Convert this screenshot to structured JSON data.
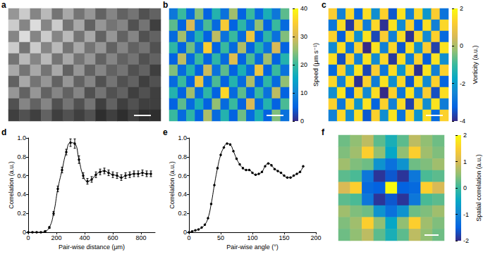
{
  "chart_data": [
    {
      "title": "a",
      "type": "heatmap",
      "color": "gray",
      "tick_labels": false,
      "cells": [
        [
          0.55,
          0.7,
          0.5,
          0.65,
          0.45,
          0.6,
          0.45,
          0.55,
          0.4,
          0.5,
          0.4,
          0.45,
          0.35,
          0.4
        ],
        [
          0.7,
          0.5,
          0.75,
          0.5,
          0.7,
          0.45,
          0.6,
          0.4,
          0.55,
          0.45,
          0.5,
          0.35,
          0.45,
          0.3
        ],
        [
          0.5,
          0.75,
          0.5,
          0.7,
          0.5,
          0.65,
          0.45,
          0.6,
          0.4,
          0.55,
          0.4,
          0.5,
          0.35,
          0.4
        ],
        [
          0.7,
          0.45,
          0.7,
          0.5,
          0.65,
          0.45,
          0.6,
          0.45,
          0.55,
          0.4,
          0.5,
          0.4,
          0.45,
          0.35
        ],
        [
          0.45,
          0.65,
          0.5,
          0.65,
          0.45,
          0.6,
          0.45,
          0.55,
          0.4,
          0.5,
          0.4,
          0.45,
          0.35,
          0.4
        ],
        [
          0.6,
          0.45,
          0.6,
          0.45,
          0.6,
          0.4,
          0.55,
          0.4,
          0.5,
          0.4,
          0.45,
          0.35,
          0.4,
          0.3
        ],
        [
          0.4,
          0.6,
          0.45,
          0.55,
          0.4,
          0.55,
          0.4,
          0.5,
          0.35,
          0.45,
          0.35,
          0.4,
          0.3,
          0.35
        ],
        [
          0.55,
          0.4,
          0.55,
          0.4,
          0.5,
          0.4,
          0.5,
          0.35,
          0.45,
          0.35,
          0.4,
          0.3,
          0.35,
          0.3
        ],
        [
          0.35,
          0.5,
          0.4,
          0.5,
          0.35,
          0.45,
          0.35,
          0.45,
          0.3,
          0.4,
          0.3,
          0.35,
          0.3,
          0.3
        ],
        [
          0.3,
          0.35,
          0.3,
          0.4,
          0.3,
          0.35,
          0.3,
          0.35,
          0.25,
          0.3,
          0.25,
          0.3,
          0.25,
          0.25
        ]
      ]
    },
    {
      "title": "b",
      "type": "heatmap",
      "color": "parula",
      "tick_labels": false,
      "colorbar": {
        "label": "Speed (μm s⁻¹)",
        "range": [
          0,
          40
        ],
        "ticks": [
          0,
          10,
          20,
          30,
          40
        ]
      },
      "cells": [
        [
          8,
          20,
          6,
          24,
          5,
          18,
          7,
          26,
          5,
          20,
          6,
          17,
          8,
          22
        ],
        [
          22,
          5,
          30,
          7,
          21,
          6,
          34,
          5,
          19,
          7,
          25,
          5,
          20,
          6
        ],
        [
          6,
          26,
          6,
          18,
          5,
          28,
          7,
          20,
          6,
          33,
          5,
          19,
          7,
          24
        ],
        [
          19,
          5,
          23,
          7,
          35,
          5,
          20,
          6,
          27,
          5,
          18,
          7,
          30,
          5
        ],
        [
          5,
          28,
          6,
          20,
          5,
          19,
          6,
          31,
          5,
          21,
          6,
          26,
          5,
          18
        ],
        [
          24,
          6,
          18,
          5,
          29,
          7,
          22,
          5,
          17,
          6,
          33,
          5,
          20,
          7
        ],
        [
          6,
          20,
          5,
          33,
          6,
          21,
          5,
          18,
          6,
          27,
          5,
          19,
          6,
          25
        ],
        [
          18,
          5,
          26,
          6,
          19,
          5,
          36,
          6,
          22,
          5,
          20,
          7,
          28,
          5
        ],
        [
          5,
          22,
          6,
          17,
          5,
          25,
          6,
          20,
          5,
          30,
          6,
          18,
          5,
          21
        ],
        [
          20,
          6,
          19,
          5,
          27,
          6,
          18,
          5,
          23,
          6,
          17,
          5,
          24,
          7
        ]
      ]
    },
    {
      "title": "c",
      "type": "heatmap",
      "color": "parula",
      "tick_labels": false,
      "colorbar": {
        "label": "Vorticity (a.u.)",
        "range": [
          -4,
          2
        ],
        "ticks": [
          -4,
          -2,
          0,
          2
        ]
      },
      "cells": [
        [
          1.2,
          -2.6,
          1.4,
          -3.1,
          1.5,
          -2.3,
          1.3,
          -3.4,
          1.6,
          -2.6,
          1.4,
          -2.1,
          1.2,
          -2.9
        ],
        [
          -2.8,
          1.5,
          -3.8,
          1.3,
          -2.7,
          1.4,
          -3.9,
          1.6,
          -2.4,
          1.3,
          -3.2,
          1.5,
          -2.6,
          1.4
        ],
        [
          1.3,
          -3.3,
          1.4,
          -2.3,
          1.6,
          -3.6,
          1.2,
          -2.6,
          1.5,
          -3.9,
          1.4,
          -2.4,
          1.3,
          -3.1
        ],
        [
          -2.4,
          1.5,
          -2.9,
          1.3,
          -4,
          1.6,
          -2.6,
          1.4,
          -3.4,
          1.5,
          -2.3,
          1.2,
          -3.7,
          1.6
        ],
        [
          1.5,
          -3.5,
          1.3,
          -2.6,
          1.6,
          -2.4,
          1.4,
          -3.8,
          1.5,
          -2.7,
          1.3,
          -3.3,
          1.6,
          -2.3
        ],
        [
          -3.1,
          1.3,
          -2.3,
          1.6,
          -3.6,
          1.2,
          -2.8,
          1.5,
          -2.2,
          1.4,
          -3.9,
          1.6,
          -2.6,
          1.3
        ],
        [
          1.4,
          -2.6,
          1.5,
          -3.9,
          1.3,
          -2.7,
          1.6,
          -2.3,
          1.4,
          -3.4,
          1.5,
          -2.4,
          1.3,
          -3.2
        ],
        [
          -2.3,
          1.6,
          -3.3,
          1.4,
          -2.4,
          1.5,
          -4,
          1.3,
          -2.8,
          1.6,
          -2.6,
          1.2,
          -3.5,
          1.5
        ],
        [
          1.3,
          -2.8,
          1.4,
          -2.2,
          1.6,
          -3.2,
          1.3,
          -2.6,
          1.5,
          -3.7,
          1.4,
          -2.3,
          1.6,
          -2.7
        ],
        [
          -2.6,
          1.4,
          -2.4,
          1.5,
          -3.4,
          1.3,
          -2.3,
          1.6,
          -2.9,
          1.4,
          -2.2,
          1.5,
          -3.1,
          1.3
        ]
      ]
    },
    {
      "title": "d",
      "type": "line",
      "color": "#000000",
      "marker": "circle",
      "grid": false,
      "xlabel": "Pair-wise distance (μm)",
      "ylabel": "Correlation (a.u.)",
      "xlim": [
        0,
        900
      ],
      "xticks": [
        0,
        200,
        400,
        600,
        800
      ],
      "ylim": [
        0,
        1
      ],
      "yticks": [
        0,
        0.2,
        0.4,
        0.6,
        0.8,
        {
          "value": 1,
          "label": "1.0"
        }
      ],
      "x": [
        0,
        30,
        60,
        90,
        120,
        150,
        180,
        210,
        240,
        270,
        300,
        330,
        360,
        390,
        420,
        450,
        480,
        510,
        540,
        570,
        600,
        630,
        660,
        690,
        720,
        750,
        780,
        810,
        840,
        870
      ],
      "values": [
        0,
        0,
        0,
        0,
        0.01,
        0.05,
        0.2,
        0.46,
        0.66,
        0.85,
        0.95,
        0.94,
        0.77,
        0.6,
        0.54,
        0.56,
        0.61,
        0.64,
        0.65,
        0.63,
        0.61,
        0.6,
        0.58,
        0.6,
        0.61,
        0.62,
        0.62,
        0.63,
        0.62,
        0.62
      ],
      "errors": [
        0,
        0,
        0,
        0,
        0.005,
        0.01,
        0.02,
        0.03,
        0.03,
        0.03,
        0.04,
        0.05,
        0.04,
        0.03,
        0.03,
        0.03,
        0.03,
        0.03,
        0.03,
        0.03,
        0.03,
        0.03,
        0.03,
        0.03,
        0.03,
        0.03,
        0.03,
        0.03,
        0.03,
        0.03
      ]
    },
    {
      "title": "e",
      "type": "line",
      "color": "#000000",
      "marker": "circle",
      "grid": false,
      "xlabel": "Pair-wise angle (°)",
      "ylabel": "Correlation (a.u.)",
      "xlim": [
        0,
        200
      ],
      "xticks": [
        0,
        50,
        100,
        150,
        200
      ],
      "ylim": [
        0,
        1
      ],
      "yticks": [
        0,
        0.2,
        0.4,
        0.6,
        0.8,
        {
          "value": 1,
          "label": "1.0"
        }
      ],
      "x": [
        0,
        5,
        10,
        15,
        20,
        25,
        30,
        35,
        40,
        45,
        50,
        55,
        60,
        65,
        70,
        75,
        80,
        85,
        90,
        95,
        100,
        105,
        110,
        115,
        120,
        125,
        130,
        135,
        140,
        145,
        150,
        155,
        160,
        165,
        170,
        175,
        180
      ],
      "values": [
        0,
        0.01,
        0.02,
        0.03,
        0.05,
        0.08,
        0.15,
        0.3,
        0.5,
        0.68,
        0.82,
        0.9,
        0.94,
        0.93,
        0.86,
        0.78,
        0.72,
        0.68,
        0.66,
        0.66,
        0.63,
        0.61,
        0.62,
        0.64,
        0.7,
        0.73,
        0.71,
        0.67,
        0.65,
        0.63,
        0.6,
        0.58,
        0.58,
        0.6,
        0.62,
        0.64,
        0.7
      ]
    },
    {
      "title": "f",
      "type": "heatmap",
      "color": "parula",
      "tick_labels": false,
      "colorbar": {
        "label": "Spatial correlation (a.u.)",
        "range": [
          -2,
          2
        ],
        "ticks": [
          -2,
          -1,
          0,
          1,
          2
        ]
      },
      "cells": [
        [
          0.3,
          0.5,
          0.8,
          0.2,
          -0.3,
          0.2,
          0.8,
          0.5,
          0.3
        ],
        [
          0.4,
          0.6,
          1.5,
          0.5,
          -0.5,
          0.5,
          1.5,
          0.6,
          0.4
        ],
        [
          0.6,
          0.4,
          0.3,
          -0.8,
          -1.3,
          -0.8,
          0.3,
          0.4,
          0.6
        ],
        [
          0.2,
          0.1,
          -1.2,
          -1.9,
          -1.6,
          -1.9,
          -1.2,
          0.1,
          0.2
        ],
        [
          1.0,
          1.5,
          -1.4,
          -1.5,
          2,
          -1.5,
          -1.4,
          1.5,
          1.0
        ],
        [
          0.2,
          0.1,
          -1.2,
          -1.9,
          -1.6,
          -1.9,
          -1.2,
          0.1,
          0.2
        ],
        [
          0.6,
          0.4,
          0.3,
          -0.8,
          -1.3,
          -0.8,
          0.3,
          0.4,
          0.6
        ],
        [
          0.4,
          0.6,
          1.5,
          0.5,
          -0.5,
          0.5,
          1.5,
          0.6,
          0.4
        ],
        [
          0.3,
          0.5,
          0.8,
          0.2,
          -0.3,
          0.2,
          0.8,
          0.5,
          0.3
        ]
      ]
    }
  ]
}
